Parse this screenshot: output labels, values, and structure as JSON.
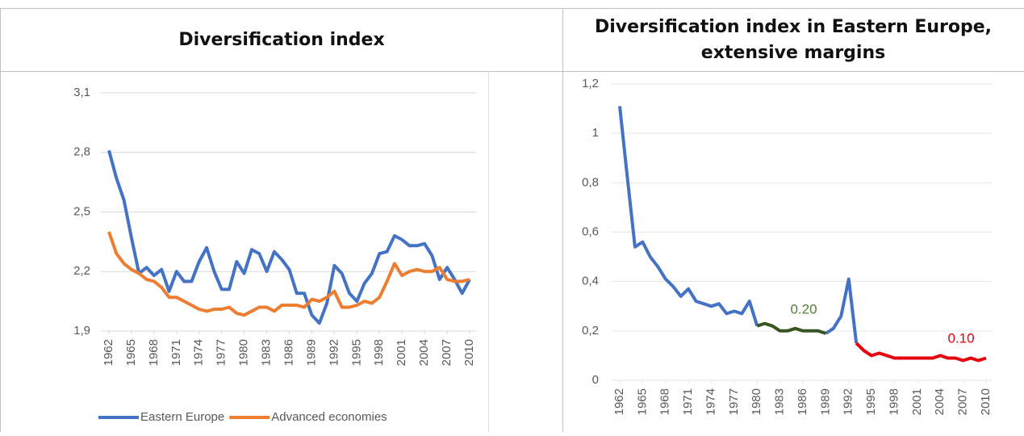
{
  "chart_data": [
    {
      "type": "line",
      "title": "Diversification index",
      "x": [
        1962,
        1963,
        1964,
        1965,
        1966,
        1967,
        1968,
        1969,
        1970,
        1971,
        1972,
        1973,
        1974,
        1975,
        1976,
        1977,
        1978,
        1979,
        1980,
        1981,
        1982,
        1983,
        1984,
        1985,
        1986,
        1987,
        1988,
        1989,
        1990,
        1991,
        1992,
        1993,
        1994,
        1995,
        1996,
        1997,
        1998,
        1999,
        2000,
        2001,
        2002,
        2003,
        2004,
        2005,
        2006,
        2007,
        2008,
        2009,
        2010
      ],
      "xlim": [
        1962,
        2010
      ],
      "xticks": [
        1962,
        1965,
        1968,
        1971,
        1974,
        1977,
        1980,
        1983,
        1986,
        1989,
        1992,
        1995,
        1998,
        2001,
        2004,
        2007,
        2010
      ],
      "ylim": [
        1.9,
        3.1
      ],
      "yticks": [
        {
          "value": 1.9,
          "label": "1,9"
        },
        {
          "value": 2.2,
          "label": "2,2"
        },
        {
          "value": 2.5,
          "label": "2,5"
        },
        {
          "value": 2.8,
          "label": "2,8"
        },
        {
          "value": 3.1,
          "label": "3,1"
        }
      ],
      "grid": true,
      "legend": "bottom",
      "series": [
        {
          "name": "Eastern Europe",
          "color": "#4472c4",
          "values": [
            2.81,
            2.67,
            2.56,
            2.37,
            2.19,
            2.22,
            2.18,
            2.21,
            2.1,
            2.2,
            2.15,
            2.15,
            2.25,
            2.32,
            2.2,
            2.11,
            2.11,
            2.25,
            2.19,
            2.31,
            2.29,
            2.2,
            2.3,
            2.26,
            2.21,
            2.09,
            2.09,
            1.98,
            1.94,
            2.04,
            2.23,
            2.19,
            2.09,
            2.05,
            2.14,
            2.19,
            2.29,
            2.3,
            2.38,
            2.36,
            2.33,
            2.33,
            2.34,
            2.28,
            2.16,
            2.22,
            2.16,
            2.09,
            2.16
          ]
        },
        {
          "name": "Advanced economies",
          "color": "#ed7d31",
          "values": [
            2.4,
            2.29,
            2.24,
            2.21,
            2.19,
            2.16,
            2.15,
            2.12,
            2.07,
            2.07,
            2.05,
            2.03,
            2.01,
            2.0,
            2.01,
            2.01,
            2.02,
            1.99,
            1.98,
            2.0,
            2.02,
            2.02,
            2.0,
            2.03,
            2.03,
            2.03,
            2.02,
            2.06,
            2.05,
            2.07,
            2.1,
            2.02,
            2.02,
            2.03,
            2.05,
            2.04,
            2.07,
            2.15,
            2.24,
            2.18,
            2.2,
            2.21,
            2.2,
            2.2,
            2.22,
            2.16,
            2.15,
            2.15,
            2.16
          ]
        }
      ]
    },
    {
      "type": "line",
      "title": "Diversification index in Eastern Europe, extensive margins",
      "x": [
        1962,
        1963,
        1964,
        1965,
        1966,
        1967,
        1968,
        1969,
        1970,
        1971,
        1972,
        1973,
        1974,
        1975,
        1976,
        1977,
        1978,
        1979,
        1980,
        1981,
        1982,
        1983,
        1984,
        1985,
        1986,
        1987,
        1988,
        1989,
        1990,
        1991,
        1992,
        1993,
        1994,
        1995,
        1996,
        1997,
        1998,
        1999,
        2000,
        2001,
        2002,
        2003,
        2004,
        2005,
        2006,
        2007,
        2008,
        2009,
        2010
      ],
      "xlim": [
        1962,
        2010
      ],
      "xticks": [
        1962,
        1965,
        1968,
        1971,
        1974,
        1977,
        1980,
        1983,
        1986,
        1989,
        1992,
        1995,
        1998,
        2001,
        2004,
        2007,
        2010
      ],
      "ylim": [
        0,
        1.2
      ],
      "yticks": [
        0,
        {
          "value": 0.2,
          "label": "0,2"
        },
        {
          "value": 0.4,
          "label": "0,4"
        },
        {
          "value": 0.6,
          "label": "0,6"
        },
        {
          "value": 0.8,
          "label": "0,8"
        },
        1,
        {
          "value": 1.2,
          "label": "1,2"
        }
      ],
      "grid": true,
      "series": [
        {
          "color": "#4472c4",
          "values": [
            1.11,
            0.82,
            0.54,
            0.56,
            0.5,
            0.46,
            0.41,
            0.38,
            0.34,
            0.37,
            0.32,
            0.31,
            0.3,
            0.31,
            0.27,
            0.28,
            0.27,
            0.32,
            0.22,
            null,
            null,
            null,
            null,
            null,
            null,
            null,
            null,
            0.19,
            0.21,
            0.26,
            0.41,
            0.15,
            null,
            null,
            null,
            null,
            null,
            null,
            null,
            null,
            null,
            null,
            null,
            null,
            null,
            null,
            null,
            null,
            null
          ]
        },
        {
          "color": "#375623",
          "values": [
            null,
            null,
            null,
            null,
            null,
            null,
            null,
            null,
            null,
            null,
            null,
            null,
            null,
            null,
            null,
            null,
            null,
            null,
            0.22,
            0.23,
            0.22,
            0.2,
            0.2,
            0.21,
            0.2,
            0.2,
            0.2,
            0.19,
            null,
            null,
            null,
            null,
            null,
            null,
            null,
            null,
            null,
            null,
            null,
            null,
            null,
            null,
            null,
            null,
            null,
            null,
            null,
            null,
            null
          ]
        },
        {
          "color": "#e8000b",
          "values": [
            null,
            null,
            null,
            null,
            null,
            null,
            null,
            null,
            null,
            null,
            null,
            null,
            null,
            null,
            null,
            null,
            null,
            null,
            null,
            null,
            null,
            null,
            null,
            null,
            null,
            null,
            null,
            null,
            null,
            null,
            null,
            0.15,
            0.12,
            0.1,
            0.11,
            0.1,
            0.09,
            0.09,
            0.09,
            0.09,
            0.09,
            0.09,
            0.1,
            0.09,
            0.09,
            0.08,
            0.09,
            0.08,
            0.09
          ]
        }
      ],
      "annotations": [
        {
          "text": "0.20",
          "color": "#538135"
        },
        {
          "text": "0.10",
          "color": "#e8000b"
        }
      ]
    }
  ]
}
